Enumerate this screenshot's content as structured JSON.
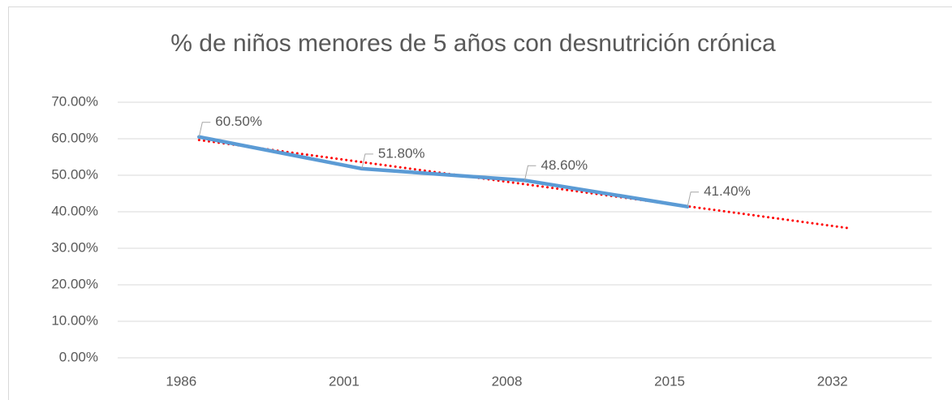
{
  "chart_data": {
    "type": "line",
    "title": "% de niños menores de 5 años con desnutrición crónica",
    "categories": [
      "1986",
      "2001",
      "2008",
      "2015",
      "2032"
    ],
    "series": [
      {
        "name": "% de niños menores de 5 años con desnutrición crónica",
        "color": "#5b9bd5",
        "values": [
          60.5,
          51.8,
          48.6,
          41.4,
          null
        ],
        "value_labels": [
          "60.50%",
          "51.80%",
          "48.60%",
          "41.40%",
          null
        ]
      }
    ],
    "trendline": {
      "type": "linear",
      "color": "#ff0000",
      "values": [
        59.65,
        53.6,
        47.55,
        41.5,
        35.45
      ]
    },
    "ylim": [
      0,
      70
    ],
    "yticks": [
      {
        "value": 0,
        "label": "0.00%"
      },
      {
        "value": 10,
        "label": "10.00%"
      },
      {
        "value": 20,
        "label": "20.00%"
      },
      {
        "value": 30,
        "label": "30.00%"
      },
      {
        "value": 40,
        "label": "40.00%"
      },
      {
        "value": 50,
        "label": "50.00%"
      },
      {
        "value": 60,
        "label": "60.00%"
      },
      {
        "value": 70,
        "label": "70.00%"
      }
    ],
    "grid": true
  }
}
